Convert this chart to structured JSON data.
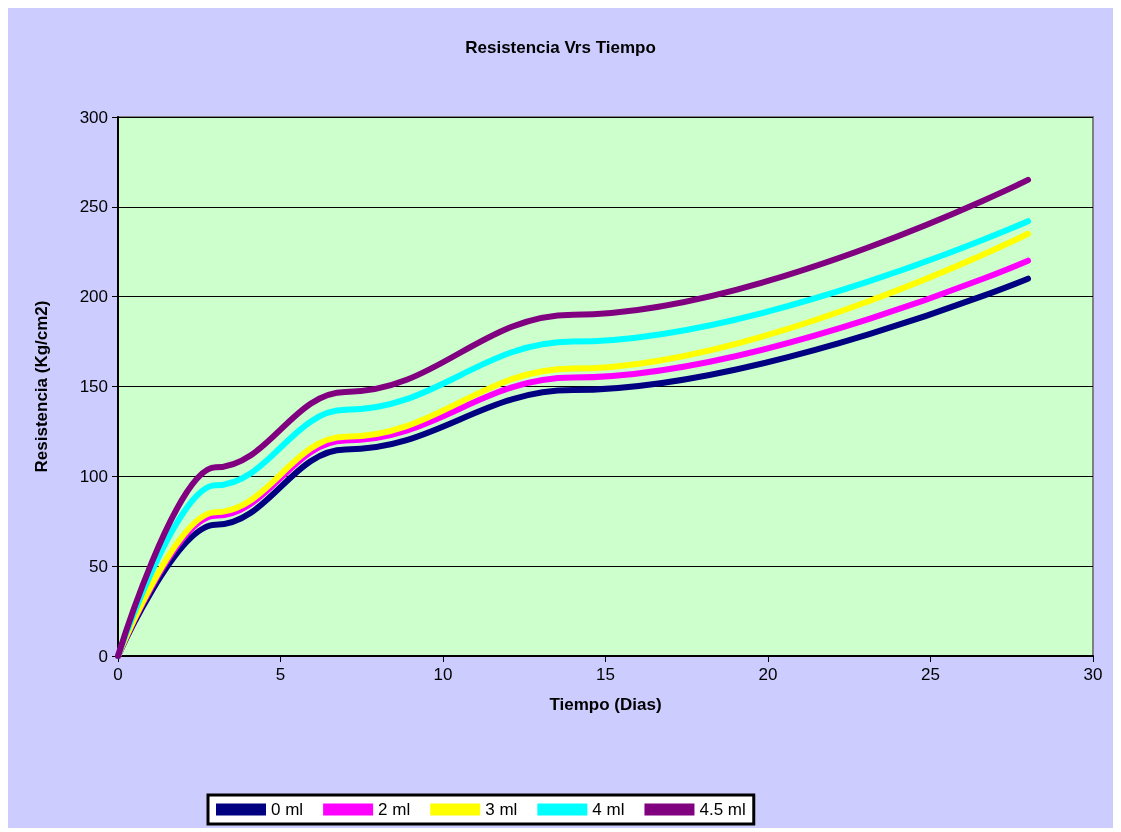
{
  "chart_data": {
    "type": "line",
    "title": "Resistencia Vrs Tiempo",
    "xlabel": "Tiempo (Dias)",
    "ylabel": "Resistencia (Kg/cm2)",
    "x": [
      0,
      3,
      7,
      14,
      28
    ],
    "series": [
      {
        "name": "0 ml",
        "color": "#000080",
        "values": [
          0,
          73,
          115,
          148,
          210
        ]
      },
      {
        "name": "2 ml",
        "color": "#ff00ff",
        "values": [
          0,
          78,
          120,
          155,
          220
        ]
      },
      {
        "name": "3 ml",
        "color": "#ffff00",
        "values": [
          0,
          80,
          122,
          160,
          235
        ]
      },
      {
        "name": "4 ml",
        "color": "#00ffff",
        "values": [
          0,
          95,
          137,
          175,
          242
        ]
      },
      {
        "name": "4.5 ml",
        "color": "#800080",
        "values": [
          0,
          105,
          147,
          190,
          265
        ]
      }
    ],
    "xlim": [
      0,
      30
    ],
    "xticks": [
      0,
      5,
      10,
      15,
      20,
      25,
      30
    ],
    "ylim": [
      0,
      300
    ],
    "yticks": [
      0,
      50,
      100,
      150,
      200,
      250,
      300
    ],
    "grid": "y",
    "legend": "bottom",
    "marker": "none",
    "line_style": "solid"
  }
}
